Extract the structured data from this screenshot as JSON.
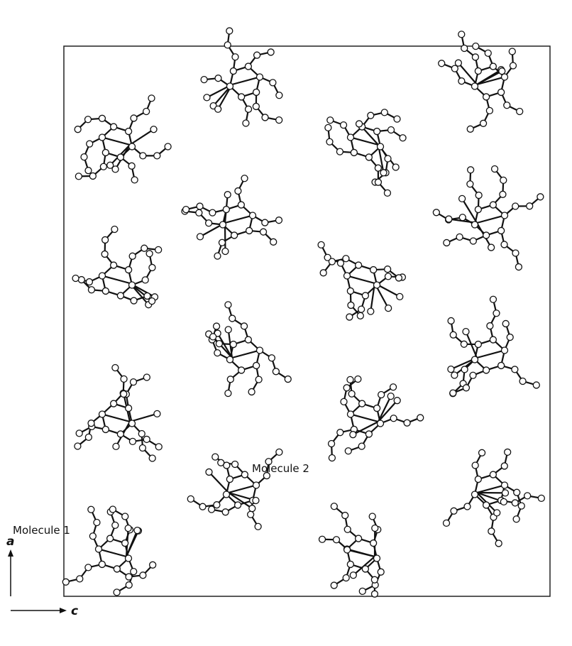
{
  "labels": {
    "molecule_2": "Molecule 2",
    "molecule_1": "Molecule 1"
  },
  "axes": {
    "vertical": "a",
    "horizontal": "c"
  }
}
